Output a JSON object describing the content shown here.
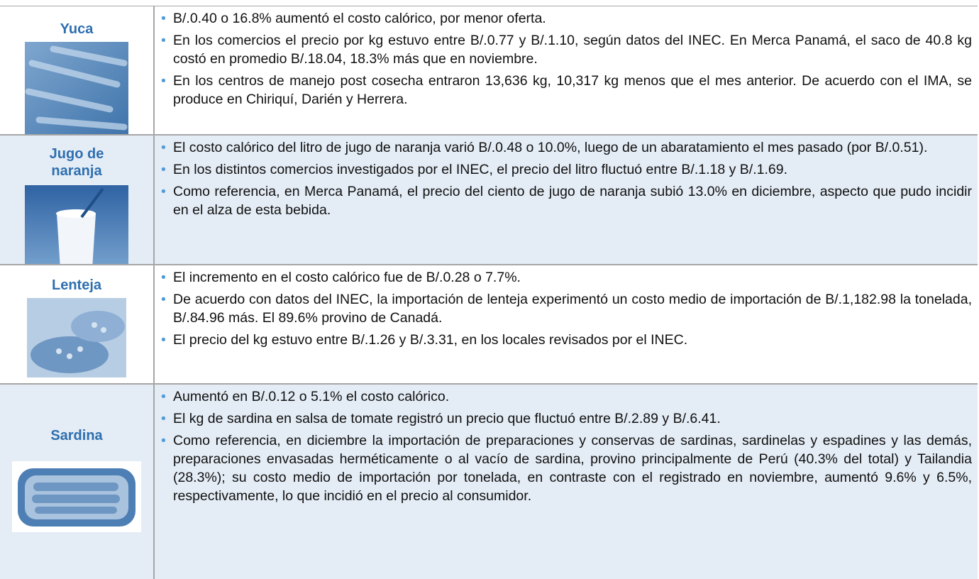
{
  "rows": [
    {
      "label": "Yuca",
      "bullets": [
        "B/.0.40 o 16.8% aumentó el costo calórico, por menor oferta.",
        "En los comercios el precio por kg estuvo entre B/.0.77 y B/.1.10, según datos del INEC.  En Merca Panamá, el saco de 40.8 kg costó en promedio B/.18.04, 18.3% más que en noviembre.",
        "En los centros de manejo post cosecha entraron 13,636 kg, 10,317 kg menos que el mes anterior.  De acuerdo con el IMA, se produce en Chiriquí, Darién y Herrera."
      ]
    },
    {
      "label": "Jugo de naranja",
      "bullets": [
        "El costo calórico del litro de jugo de naranja varió B/.0.48 o 10.0%, luego de un abaratamiento el mes pasado (por B/.0.51).",
        "En los distintos comercios investigados por el INEC, el precio del litro fluctuó entre B/.1.18 y B/.1.69.",
        "Como referencia, en Merca Panamá, el precio del ciento de jugo de naranja subió 13.0% en diciembre, aspecto que pudo incidir en el alza de esta bebida."
      ]
    },
    {
      "label": "Lenteja",
      "bullets": [
        "El incremento en el costo calórico fue de B/.0.28 o 7.7%.",
        "De acuerdo con datos del INEC, la importación de lenteja experimentó un costo medio de importación de B/.1,182.98 la tonelada, B/.84.96 más.  El 89.6% provino de Canadá.",
        "El precio del kg estuvo entre B/.1.26 y B/.3.31, en los locales revisados por el INEC."
      ]
    },
    {
      "label": "Sardina",
      "bullets": [
        "Aumentó en B/.0.12 o 5.1% el costo calórico.",
        "El kg de sardina en salsa de tomate registró un precio que fluctuó entre B/.2.89 y B/.6.41.",
        "Como referencia, en diciembre la importación de preparaciones y conservas de sardinas, sardinelas y espadines y las demás, preparaciones envasadas herméticamente o al vacío de sardina, provino principalmente de Perú (40.3% del total) y Tailandia (28.3%); su costo medio de importación por tonelada, en contraste con el registrado en noviembre, aumentó 9.6% y 6.5%, respectivamente, lo que incidió en el precio al consumidor."
      ]
    }
  ]
}
